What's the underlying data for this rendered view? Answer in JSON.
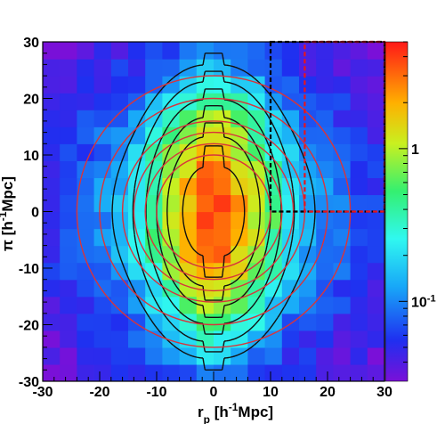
{
  "chart_data": {
    "type": "heatmap",
    "title": "",
    "xlabel": "r_p [h^-1Mpc]",
    "ylabel": "π [h^-1Mpc]",
    "xlim": [
      -30,
      30
    ],
    "ylim": [
      -30,
      30
    ],
    "xticks": [
      -30,
      -20,
      -10,
      0,
      10,
      20,
      30
    ],
    "yticks": [
      -30,
      -20,
      -10,
      0,
      10,
      20,
      30
    ],
    "x_tick_labels": [
      "-30",
      "-20",
      "-10",
      "0",
      "10",
      "20",
      "30"
    ],
    "y_tick_labels": [
      "-30",
      "-20",
      "-10",
      "0",
      "10",
      "20",
      "30"
    ],
    "grid": false,
    "bins": 20,
    "bin_size": 3,
    "colorbar": {
      "scale": "log",
      "range": [
        0.03,
        5
      ],
      "tick_labels": [
        {
          "value": 1,
          "text": "1"
        },
        {
          "value": 0.1,
          "text": "10",
          "exp": "-1"
        }
      ]
    },
    "black_contour_levels": [
      0.12,
      0.2,
      0.35,
      0.6,
      1.0,
      1.8
    ],
    "red_circle_radii": [
      10,
      12,
      14,
      16,
      20,
      24
    ],
    "dashed_boxes": [
      {
        "color": "#000000",
        "x": [
          10,
          30
        ],
        "y": [
          0,
          30
        ]
      },
      {
        "color": "#e8141c",
        "x": [
          16,
          30
        ],
        "y": [
          0,
          30
        ]
      }
    ]
  }
}
